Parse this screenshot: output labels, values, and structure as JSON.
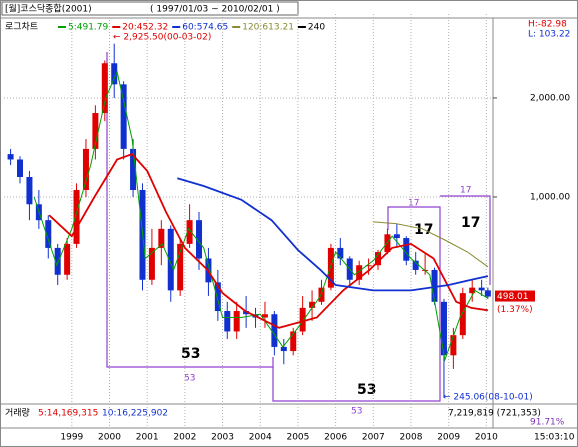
{
  "chart_data": {
    "type": "candlestick",
    "title": "[월]코스닥종합(2001)",
    "subtitle": "( 1997/01/03 ~ 2010/02/01 )",
    "scale_label": "로그차트",
    "log_scale": true,
    "grid": true,
    "up_color": "#e00000",
    "down_color": "#1030d0",
    "x": [
      1997.375,
      1997.625,
      1997.875,
      1998.125,
      1998.375,
      1998.625,
      1998.875,
      1999.125,
      1999.375,
      1999.625,
      1999.875,
      2000.125,
      2000.375,
      2000.625,
      2000.875,
      2001.125,
      2001.375,
      2001.625,
      2001.875,
      2002.125,
      2002.375,
      2002.625,
      2002.875,
      2003.125,
      2003.375,
      2003.625,
      2003.875,
      2004.125,
      2004.375,
      2004.625,
      2004.875,
      2005.125,
      2005.375,
      2005.625,
      2005.875,
      2006.125,
      2006.375,
      2006.625,
      2006.875,
      2007.125,
      2007.375,
      2007.625,
      2007.875,
      2008.125,
      2008.375,
      2008.625,
      2008.875,
      2009.125,
      2009.375,
      2009.625,
      2009.875,
      2010.04
    ],
    "open": [
      1350,
      1300,
      1150,
      950,
      850,
      700,
      580,
      720,
      1050,
      1400,
      1800,
      2550,
      2200,
      1400,
      1050,
      560,
      700,
      800,
      520,
      720,
      850,
      650,
      550,
      450,
      390,
      450,
      440,
      430,
      440,
      350,
      340,
      390,
      460,
      480,
      530,
      700,
      650,
      560,
      620,
      620,
      680,
      770,
      750,
      640,
      600,
      600,
      480,
      330,
      380,
      510,
      530,
      520
    ],
    "high": [
      1400,
      1330,
      1200,
      1050,
      880,
      720,
      750,
      1100,
      1500,
      1900,
      2600,
      2925.5,
      2250,
      1500,
      1100,
      800,
      850,
      820,
      750,
      950,
      900,
      700,
      600,
      480,
      480,
      500,
      460,
      480,
      450,
      370,
      400,
      500,
      520,
      560,
      720,
      750,
      660,
      640,
      650,
      690,
      800,
      830,
      760,
      680,
      670,
      610,
      490,
      400,
      530,
      560,
      560,
      530
    ],
    "low": [
      1250,
      1100,
      850,
      800,
      650,
      540,
      560,
      700,
      1000,
      1300,
      1700,
      2000,
      1300,
      1000,
      520,
      540,
      620,
      480,
      500,
      700,
      600,
      500,
      420,
      370,
      370,
      400,
      400,
      400,
      330,
      310,
      330,
      380,
      420,
      470,
      520,
      620,
      540,
      540,
      580,
      600,
      670,
      700,
      620,
      580,
      580,
      470,
      245.06,
      300,
      370,
      480,
      500,
      490
    ],
    "close": [
      1300,
      1150,
      950,
      850,
      700,
      580,
      720,
      1050,
      1400,
      1800,
      2550,
      2200,
      1400,
      1050,
      560,
      700,
      800,
      520,
      720,
      850,
      650,
      550,
      450,
      390,
      450,
      440,
      430,
      440,
      350,
      340,
      390,
      460,
      480,
      530,
      700,
      650,
      560,
      620,
      620,
      680,
      770,
      750,
      640,
      600,
      600,
      480,
      330,
      380,
      510,
      530,
      520,
      498.01
    ],
    "series": [
      {
        "name": "5:491.79",
        "color": "#00a000",
        "x": [
          1998.0,
          1998.6,
          1999.0,
          1999.5,
          1999.9,
          2000.2,
          2000.6,
          2000.95,
          2001.4,
          2001.7,
          2002.1,
          2002.5,
          2003.0,
          2003.5,
          2004.0,
          2004.6,
          2005.0,
          2005.6,
          2006.0,
          2006.5,
          2007.0,
          2007.5,
          2008.0,
          2008.5,
          2008.9,
          2009.3,
          2009.7,
          2010.04
        ],
        "values": [
          1000,
          620,
          800,
          1250,
          2000,
          2400,
          1500,
          650,
          720,
          600,
          800,
          700,
          430,
          430,
          440,
          350,
          400,
          500,
          680,
          580,
          640,
          760,
          650,
          580,
          320,
          430,
          520,
          491.79
        ]
      },
      {
        "name": "20:452.32",
        "color": "#e00000",
        "x": [
          1998.4,
          1999.0,
          1999.6,
          2000.2,
          2000.6,
          2001.0,
          2001.5,
          2002.0,
          2002.6,
          2003.0,
          2003.6,
          2004.5,
          2005.5,
          2006.2,
          2006.9,
          2007.5,
          2008.0,
          2008.6,
          2009.2,
          2009.6,
          2010.04
        ],
        "values": [
          880,
          760,
          1000,
          1300,
          1350,
          1200,
          900,
          700,
          600,
          510,
          450,
          400,
          430,
          520,
          600,
          700,
          720,
          650,
          480,
          460,
          452.32
        ]
      },
      {
        "name": "60:574.65",
        "color": "#1030d0",
        "x": [
          2001.8,
          2002.5,
          2003.5,
          2004.3,
          2005.0,
          2005.6,
          2006.0,
          2007.0,
          2008.0,
          2009.0,
          2009.6,
          2010.04
        ],
        "values": [
          1140,
          1080,
          980,
          850,
          690,
          600,
          540,
          520,
          520,
          540,
          560,
          574.65
        ]
      },
      {
        "name": "120:613.21",
        "color": "#8a8a30",
        "x": [
          2007.0,
          2007.6,
          2008.3,
          2008.9,
          2009.5,
          2010.04
        ],
        "values": [
          840,
          830,
          800,
          740,
          680,
          613.21
        ]
      },
      {
        "name": "240",
        "color": "#000000",
        "x": [],
        "values": []
      }
    ],
    "xlim": [
      1997.2,
      2010.15
    ],
    "ylim": [
      238,
      3600
    ],
    "xticks": [
      1999,
      2000,
      2001,
      2002,
      2003,
      2004,
      2005,
      2006,
      2007,
      2008,
      2009,
      2010
    ],
    "yticks": [
      {
        "value": 2000,
        "label": "2,000.00"
      },
      {
        "value": 1000,
        "label": "1,000.00"
      }
    ],
    "change_label": "(1.37%)",
    "high_info": "H:-82.98",
    "low_info": "L: 103.22",
    "annotations": {
      "max": "← 2,925.50(00-03-02)",
      "min": "← 245.06(08-10-01)",
      "cycle1_big": "53",
      "cycle1_small": "53",
      "cycle2_big": "53",
      "cycle2_small": "53",
      "cycle3_big": "17",
      "cycle3_small": "17",
      "cycle4_big": "17",
      "cycle4_small": "17"
    },
    "volume": {
      "label": "거래량",
      "ma5": "5:14,169,315",
      "ma10": "10:16,225,902",
      "current": "7,219,819 (721,353)",
      "ratio": "91.71%"
    },
    "time": "15:03:10"
  }
}
